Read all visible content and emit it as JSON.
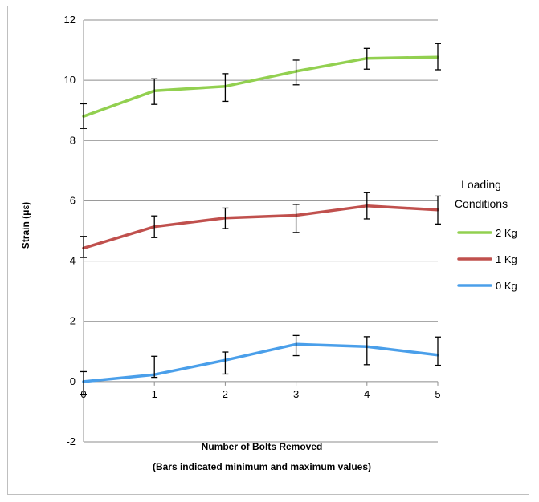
{
  "chart_data": {
    "type": "line",
    "title": "",
    "xlabel": "Number of Bolts Removed",
    "xlabel_note": "(Bars indicated minimum and maximum values)",
    "ylabel": "Strain (με)",
    "x": [
      0,
      1,
      2,
      3,
      4,
      5
    ],
    "xlim": [
      0,
      5
    ],
    "ylim": [
      -2,
      12
    ],
    "yticks": [
      -2,
      0,
      2,
      4,
      6,
      8,
      10,
      12
    ],
    "xticks": [
      0,
      1,
      2,
      3,
      4,
      5
    ],
    "grid": "horizontal major gridlines",
    "legend_title": "Loading Conditions",
    "legend_position": "right",
    "series": [
      {
        "name": "2 Kg",
        "color": "#92D050",
        "values": [
          8.8,
          9.65,
          9.8,
          10.3,
          10.73,
          10.77
        ],
        "min": [
          8.4,
          9.2,
          9.3,
          9.85,
          10.37,
          10.35
        ],
        "max": [
          9.22,
          10.05,
          10.22,
          10.67,
          11.06,
          11.22
        ]
      },
      {
        "name": "1 Kg",
        "color": "#C0504D",
        "values": [
          4.43,
          5.14,
          5.43,
          5.52,
          5.83,
          5.7
        ],
        "min": [
          4.12,
          4.78,
          5.08,
          4.95,
          5.4,
          5.23
        ],
        "max": [
          4.82,
          5.5,
          5.76,
          5.88,
          6.27,
          6.16
        ]
      },
      {
        "name": "0 Kg",
        "color": "#4A9FEA",
        "values": [
          0.0,
          0.23,
          0.71,
          1.24,
          1.16,
          0.88
        ],
        "min": [
          -0.42,
          0.14,
          0.25,
          0.86,
          0.56,
          0.54
        ],
        "max": [
          0.33,
          0.84,
          0.98,
          1.53,
          1.49,
          1.48
        ]
      }
    ]
  }
}
